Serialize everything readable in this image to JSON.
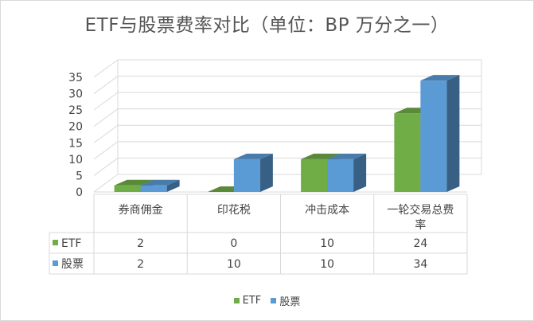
{
  "chart_data": {
    "type": "bar",
    "title": "ETF与股票费率对比（单位：BP 万分之一）",
    "categories": [
      "券商佣金",
      "印花税",
      "冲击成本",
      "一轮交易总费率"
    ],
    "series": [
      {
        "name": "ETF",
        "values": [
          2,
          0,
          10,
          24
        ],
        "color": "#70ad47"
      },
      {
        "name": "股票",
        "values": [
          2,
          10,
          10,
          34
        ],
        "color": "#5b9bd5"
      }
    ],
    "yticks": [
      0,
      5,
      10,
      15,
      20,
      25,
      30,
      35
    ],
    "ylim": [
      0,
      35
    ],
    "grid": true,
    "data_table": true,
    "legend_position": "bottom",
    "bar_style": "3d-clustered-column"
  }
}
